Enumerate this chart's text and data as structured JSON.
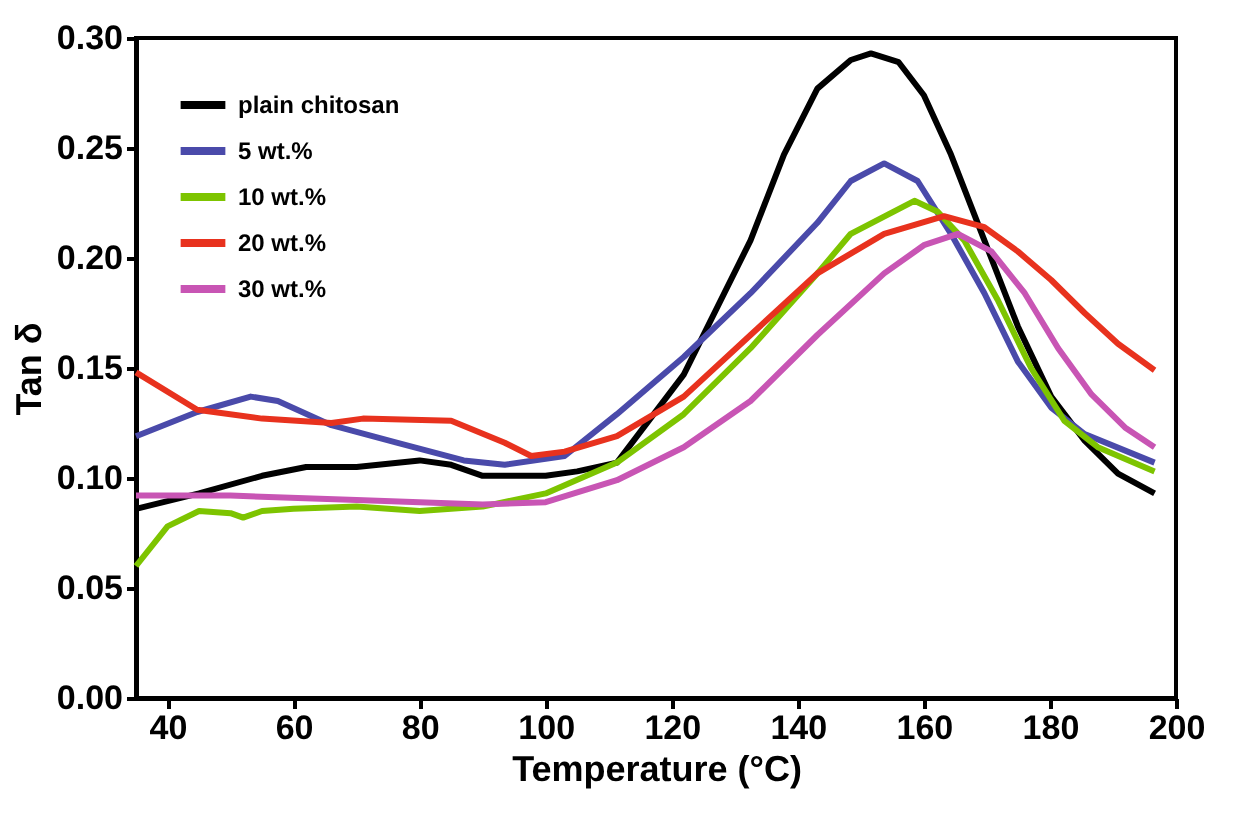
{
  "chart_data": {
    "type": "line",
    "xlabel": "Temperature (°C)",
    "ylabel": "Tan δ",
    "xlim": [
      35,
      200
    ],
    "xticks": [
      40,
      60,
      80,
      100,
      120,
      140,
      160,
      180,
      200
    ],
    "ylim": [
      0,
      0.3
    ],
    "yticks": [
      {
        "value": 0,
        "label": "0.00"
      },
      {
        "value": 0.05,
        "label": "0.05"
      },
      {
        "value": 0.1,
        "label": "0.10"
      },
      {
        "value": 0.15,
        "label": "0.15"
      },
      {
        "value": 0.2,
        "label": "0.20"
      },
      {
        "value": 0.25,
        "label": "0.25"
      },
      {
        "value": 0.3,
        "label": "0.30"
      }
    ],
    "grid": false,
    "legend": "top left",
    "marker": "none",
    "line_style": "solid",
    "series": [
      {
        "name": "plain chitosan",
        "color": "#000000",
        "x": [
          35,
          45,
          55,
          62,
          70,
          80,
          85,
          90,
          100,
          105,
          111.3,
          121.9,
          132.5,
          137.8,
          143.1,
          148.4,
          151.6,
          156,
          160,
          164.3,
          169.6,
          174.9,
          180.2,
          185.5,
          190.8,
          196.6
        ],
        "values": [
          0.086,
          0.093,
          0.101,
          0.105,
          0.105,
          0.108,
          0.106,
          0.101,
          0.101,
          0.103,
          0.107,
          0.147,
          0.208,
          0.247,
          0.277,
          0.29,
          0.293,
          0.289,
          0.274,
          0.247,
          0.208,
          0.169,
          0.137,
          0.117,
          0.102,
          0.093
        ]
      },
      {
        "name": "5 wt.%",
        "color": "#4a4aaa",
        "x": [
          35,
          44.7,
          53.2,
          57.5,
          66,
          76.5,
          87,
          93.5,
          103,
          111.3,
          121.9,
          132.5,
          143.1,
          148.4,
          153.7,
          159,
          164.3,
          169.6,
          174.9,
          180.2,
          185.5,
          196.6
        ],
        "values": [
          0.119,
          0.13,
          0.137,
          0.135,
          0.124,
          0.116,
          0.108,
          0.106,
          0.11,
          0.129,
          0.155,
          0.184,
          0.216,
          0.235,
          0.243,
          0.235,
          0.211,
          0.184,
          0.153,
          0.132,
          0.12,
          0.107
        ]
      },
      {
        "name": "10 wt.%",
        "color": "#7dc400",
        "x": [
          35,
          40,
          45,
          50,
          52,
          55,
          60,
          70,
          80,
          90,
          100,
          111.3,
          121.9,
          132.5,
          143.1,
          148.4,
          158.5,
          162.2,
          166.4,
          171.7,
          177,
          182.3,
          187.6,
          196.6
        ],
        "values": [
          0.06,
          0.078,
          0.085,
          0.084,
          0.082,
          0.085,
          0.086,
          0.087,
          0.085,
          0.087,
          0.093,
          0.107,
          0.129,
          0.159,
          0.193,
          0.211,
          0.226,
          0.221,
          0.208,
          0.181,
          0.15,
          0.126,
          0.114,
          0.103
        ]
      },
      {
        "name": "20 wt.%",
        "color": "#e8321e",
        "x": [
          35,
          44.7,
          55,
          66,
          71,
          85,
          93.5,
          97.7,
          103,
          111.3,
          121.9,
          132.5,
          143.1,
          153.7,
          163.2,
          169.6,
          174.9,
          180.2,
          185.5,
          190.8,
          196.6
        ],
        "values": [
          0.148,
          0.131,
          0.127,
          0.125,
          0.127,
          0.126,
          0.116,
          0.11,
          0.112,
          0.119,
          0.137,
          0.165,
          0.193,
          0.211,
          0.219,
          0.214,
          0.203,
          0.19,
          0.175,
          0.161,
          0.149
        ]
      },
      {
        "name": "30 wt.%",
        "color": "#c855b4",
        "x": [
          35,
          50,
          70,
          90,
          100,
          111.3,
          121.9,
          132.5,
          143.1,
          153.7,
          160.1,
          165.4,
          170.7,
          176,
          181.3,
          186.6,
          191.9,
          196.6
        ],
        "values": [
          0.092,
          0.092,
          0.09,
          0.088,
          0.089,
          0.099,
          0.114,
          0.135,
          0.165,
          0.193,
          0.206,
          0.211,
          0.203,
          0.184,
          0.159,
          0.138,
          0.123,
          0.114
        ]
      }
    ]
  }
}
